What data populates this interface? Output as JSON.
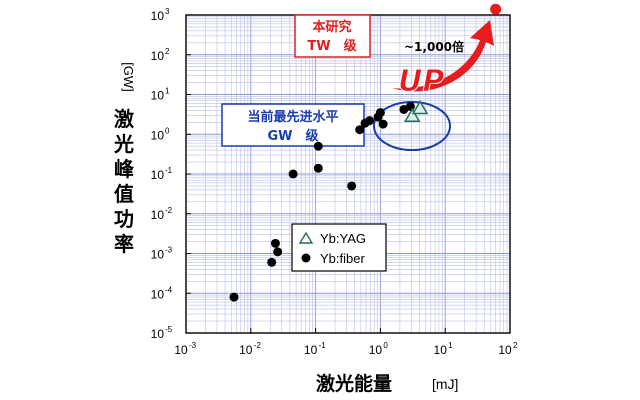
{
  "chart_data": {
    "type": "scatter",
    "xlabel": "激光能量",
    "xunit": "[mJ]",
    "ylabel": "激光峰值功率",
    "yunit": "[GW]",
    "xscale": "log",
    "yscale": "log",
    "xlim": [
      0.001,
      100
    ],
    "ylim": [
      1e-05,
      1000
    ],
    "grid": true,
    "x_ticks": [
      {
        "base": "10",
        "exp": "-3",
        "value": 0.001
      },
      {
        "base": "10",
        "exp": "-2",
        "value": 0.01
      },
      {
        "base": "10",
        "exp": "-1",
        "value": 0.1
      },
      {
        "base": "10",
        "exp": "0",
        "value": 1
      },
      {
        "base": "10",
        "exp": "1",
        "value": 10
      },
      {
        "base": "10",
        "exp": "2",
        "value": 100
      }
    ],
    "y_ticks": [
      {
        "base": "10",
        "exp": "-5",
        "value": 1e-05
      },
      {
        "base": "10",
        "exp": "-4",
        "value": 0.0001
      },
      {
        "base": "10",
        "exp": "-3",
        "value": 0.001
      },
      {
        "base": "10",
        "exp": "-2",
        "value": 0.01
      },
      {
        "base": "10",
        "exp": "-1",
        "value": 0.1
      },
      {
        "base": "10",
        "exp": "0",
        "value": 1
      },
      {
        "base": "10",
        "exp": "1",
        "value": 10
      },
      {
        "base": "10",
        "exp": "2",
        "value": 100
      },
      {
        "base": "10",
        "exp": "3",
        "value": 1000
      }
    ],
    "series": [
      {
        "name": "Yb:fiber",
        "marker": "circle",
        "points": [
          [
            0.0055,
            8e-05
          ],
          [
            0.021,
            0.0006
          ],
          [
            0.024,
            0.0018
          ],
          [
            0.026,
            0.0011
          ],
          [
            0.36,
            0.05
          ],
          [
            0.045,
            0.1
          ],
          [
            0.11,
            0.14
          ],
          [
            0.11,
            0.5
          ],
          [
            0.48,
            1.3
          ],
          [
            0.58,
            1.9
          ],
          [
            0.68,
            2.2
          ],
          [
            0.92,
            2.7
          ],
          [
            1.0,
            3.5
          ],
          [
            1.1,
            1.8
          ],
          [
            2.3,
            4.2
          ],
          [
            2.9,
            5.0
          ]
        ]
      },
      {
        "name": "Yb:YAG",
        "marker": "triangle",
        "points": [
          [
            3.1,
            3.0
          ],
          [
            4.1,
            4.7
          ]
        ]
      },
      {
        "name": "",
        "marker": "red-dot",
        "color": "#e81c1c",
        "points": [
          [
            60,
            1400
          ]
        ]
      }
    ],
    "annotations": {
      "target_line1": "本研究",
      "target_line2": "TW　级",
      "gain": "~1,000倍",
      "up": "UP",
      "current_line1": "当前最先进水平",
      "current_line2": "GW　级"
    },
    "legend": {
      "placement": "lower-center",
      "items": [
        {
          "marker": "triangle",
          "label": "Yb:YAG"
        },
        {
          "marker": "circle",
          "label": "Yb:fiber"
        }
      ]
    },
    "colors": {
      "grid": "#b8c0e8",
      "grid_major": "#8f98d8",
      "red": "#e02020",
      "blue": "#1a3cb0",
      "point": "#000000",
      "triangle_fill": "#d6f0ea"
    }
  }
}
